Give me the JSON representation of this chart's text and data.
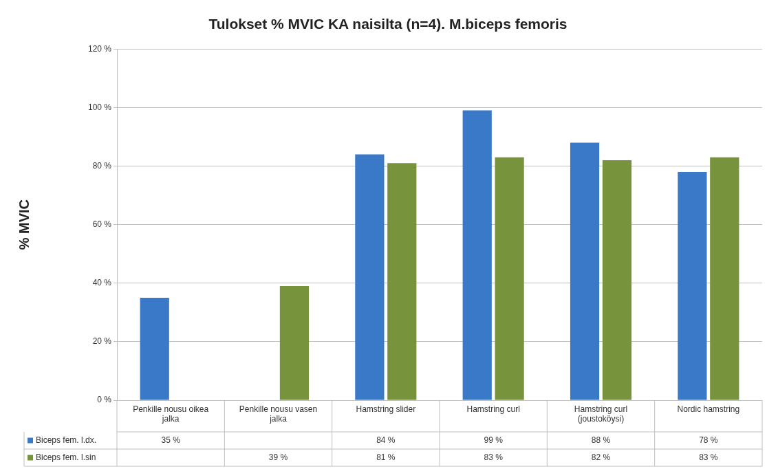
{
  "chart_data": {
    "type": "bar",
    "title": "Tulokset % MVIC KA naisilta (n=4). M.biceps femoris",
    "ylabel": "% MVIC",
    "categories": [
      "Penkille nousu oikea jalka",
      "Penkille nousu vasen jalka",
      "Hamstring slider",
      "Hamstring curl",
      "Hamstring curl (joustoköysi)",
      "Nordic hamstring"
    ],
    "series": [
      {
        "name": "Biceps fem. l.dx.",
        "color": "#3a78c8",
        "values": [
          35,
          null,
          84,
          99,
          88,
          78
        ],
        "value_labels": [
          "35 %",
          null,
          "84 %",
          "99 %",
          "88 %",
          "78 %"
        ]
      },
      {
        "name": "Biceps fem. l.sin",
        "color": "#77933c",
        "values": [
          null,
          39,
          81,
          83,
          82,
          83
        ],
        "value_labels": [
          null,
          "39 %",
          "81 %",
          "83 %",
          "82 %",
          "83 %"
        ]
      }
    ],
    "ylim": [
      0,
      120
    ],
    "yticks": [
      {
        "value": 0,
        "label": "0 %"
      },
      {
        "value": 20,
        "label": "20 %"
      },
      {
        "value": 40,
        "label": "40 %"
      },
      {
        "value": 60,
        "label": "60 %"
      },
      {
        "value": 80,
        "label": "80 %"
      },
      {
        "value": 100,
        "label": "100 %"
      },
      {
        "value": 120,
        "label": "120 %"
      }
    ],
    "grid": "y",
    "legend": "bottom left"
  }
}
